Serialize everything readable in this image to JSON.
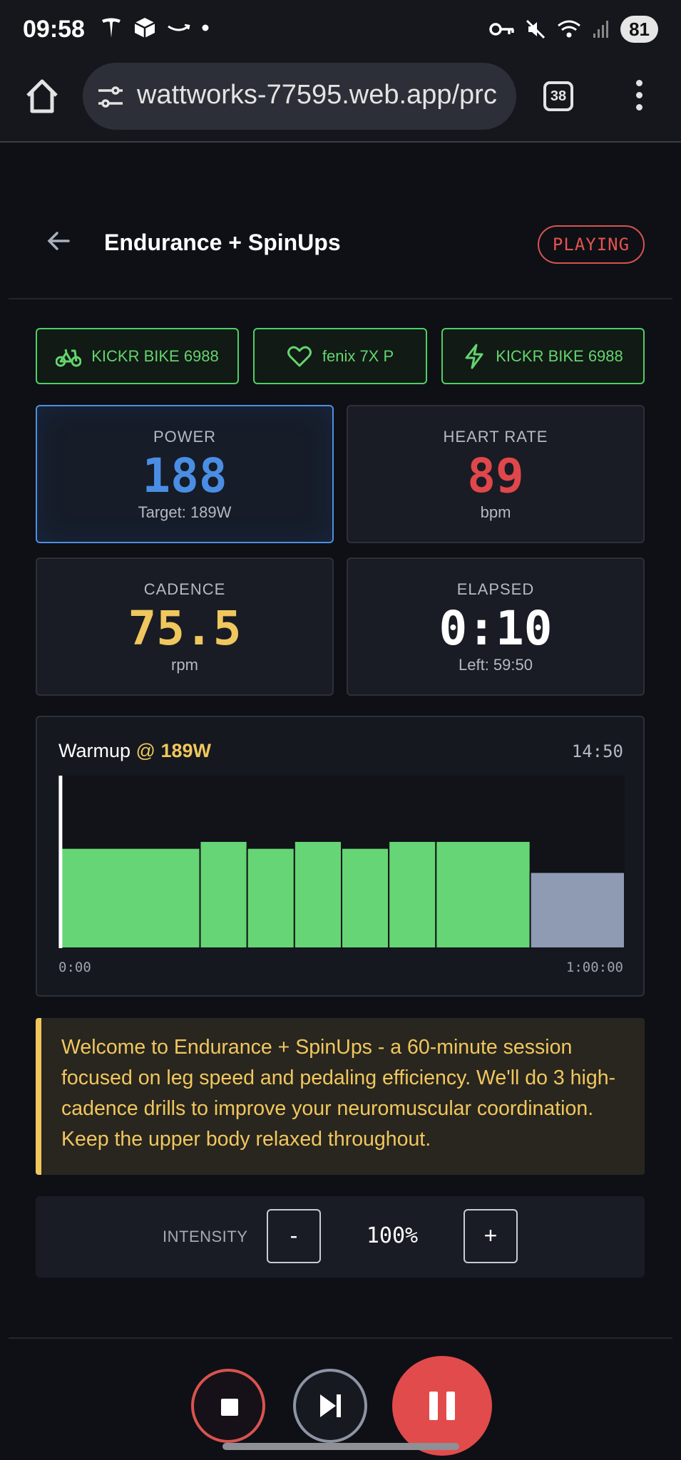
{
  "status_bar": {
    "time": "09:58",
    "battery": "81"
  },
  "browser": {
    "url": "wattworks-77595.web.app/prc",
    "tab_count": "38"
  },
  "header": {
    "title": "Endurance + SpinUps",
    "status": "PLAYING"
  },
  "devices": [
    {
      "icon": "bike-icon",
      "label": "KICKR BIKE 6988"
    },
    {
      "icon": "heart-icon",
      "label": "fenix 7X P"
    },
    {
      "icon": "lightning-icon",
      "label": "KICKR BIKE 6988"
    }
  ],
  "metrics": {
    "power": {
      "label": "POWER",
      "value": "188",
      "sub": "Target: 189W",
      "color": "#4a8ee4"
    },
    "heart_rate": {
      "label": "HEART RATE",
      "value": "89",
      "sub": "bpm",
      "color": "#e0474b"
    },
    "cadence": {
      "label": "CADENCE",
      "value": "75.5",
      "sub": "rpm",
      "color": "#f0c75e"
    },
    "elapsed": {
      "label": "ELAPSED",
      "value": "0:10",
      "sub": "Left: 59:50",
      "color": "#ffffff"
    }
  },
  "workout": {
    "segment_name": "Warmup",
    "segment_at": "@",
    "segment_target": "189W",
    "segment_time": "14:50",
    "axis_start": "0:00",
    "axis_end": "1:00:00"
  },
  "chart_data": {
    "type": "bar",
    "total_minutes": 60,
    "progress_fraction": 0.003,
    "segments": [
      {
        "start": 0,
        "end": 15,
        "level": 0.58,
        "color": "#66d575"
      },
      {
        "start": 15,
        "end": 20,
        "level": 0.62,
        "color": "#66d575"
      },
      {
        "start": 20,
        "end": 25,
        "level": 0.58,
        "color": "#66d575"
      },
      {
        "start": 25,
        "end": 30,
        "level": 0.62,
        "color": "#66d575"
      },
      {
        "start": 30,
        "end": 35,
        "level": 0.58,
        "color": "#66d575"
      },
      {
        "start": 35,
        "end": 40,
        "level": 0.62,
        "color": "#66d575"
      },
      {
        "start": 40,
        "end": 50,
        "level": 0.62,
        "color": "#66d575"
      },
      {
        "start": 50,
        "end": 60,
        "level": 0.44,
        "color": "#8f9bb3"
      }
    ]
  },
  "description": "Welcome to Endurance + SpinUps - a 60-minute session focused on leg speed and pedaling efficiency. We'll do 3 high-cadence drills to improve your neuromuscular coordination. Keep the upper body relaxed throughout.",
  "intensity": {
    "label": "INTENSITY",
    "minus": "-",
    "value": "100%",
    "plus": "+"
  }
}
